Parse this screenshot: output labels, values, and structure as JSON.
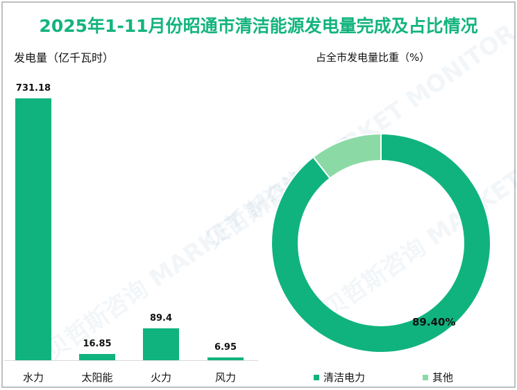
{
  "title": "2025年1-11月份昭通市清洁能源发电量完成及占比情况",
  "watermark": "贝哲斯咨询 MARKET MONITOR",
  "left_chart": {
    "subtitle": "发电量（亿千瓦时）"
  },
  "right_chart": {
    "subtitle": "占全市发电量比重（%）",
    "label": "89.40%",
    "legend": [
      {
        "label": "清洁电力",
        "color": "#10b37e"
      },
      {
        "label": "其他",
        "color": "#8bdaa6"
      }
    ]
  },
  "colors": {
    "accent": "#13b47d",
    "bar": "#10b37e",
    "other": "#8bdaa6"
  },
  "chart_data": [
    {
      "type": "bar",
      "title": "发电量（亿千瓦时）",
      "categories": [
        "水力",
        "太阳能",
        "火力",
        "风力"
      ],
      "values": [
        731.18,
        16.85,
        89.4,
        6.95
      ],
      "value_labels": [
        "731.18",
        "16.85",
        "89.4",
        "6.95"
      ],
      "xlabel": "",
      "ylabel": "发电量（亿千瓦时）",
      "grid": false,
      "legend": false
    },
    {
      "type": "pie",
      "subtype": "donut",
      "title": "占全市发电量比重（%）",
      "categories": [
        "清洁电力",
        "其他"
      ],
      "values": [
        89.4,
        10.6
      ],
      "data_labels": [
        "89.40%",
        ""
      ],
      "legend_position": "bottom"
    }
  ]
}
